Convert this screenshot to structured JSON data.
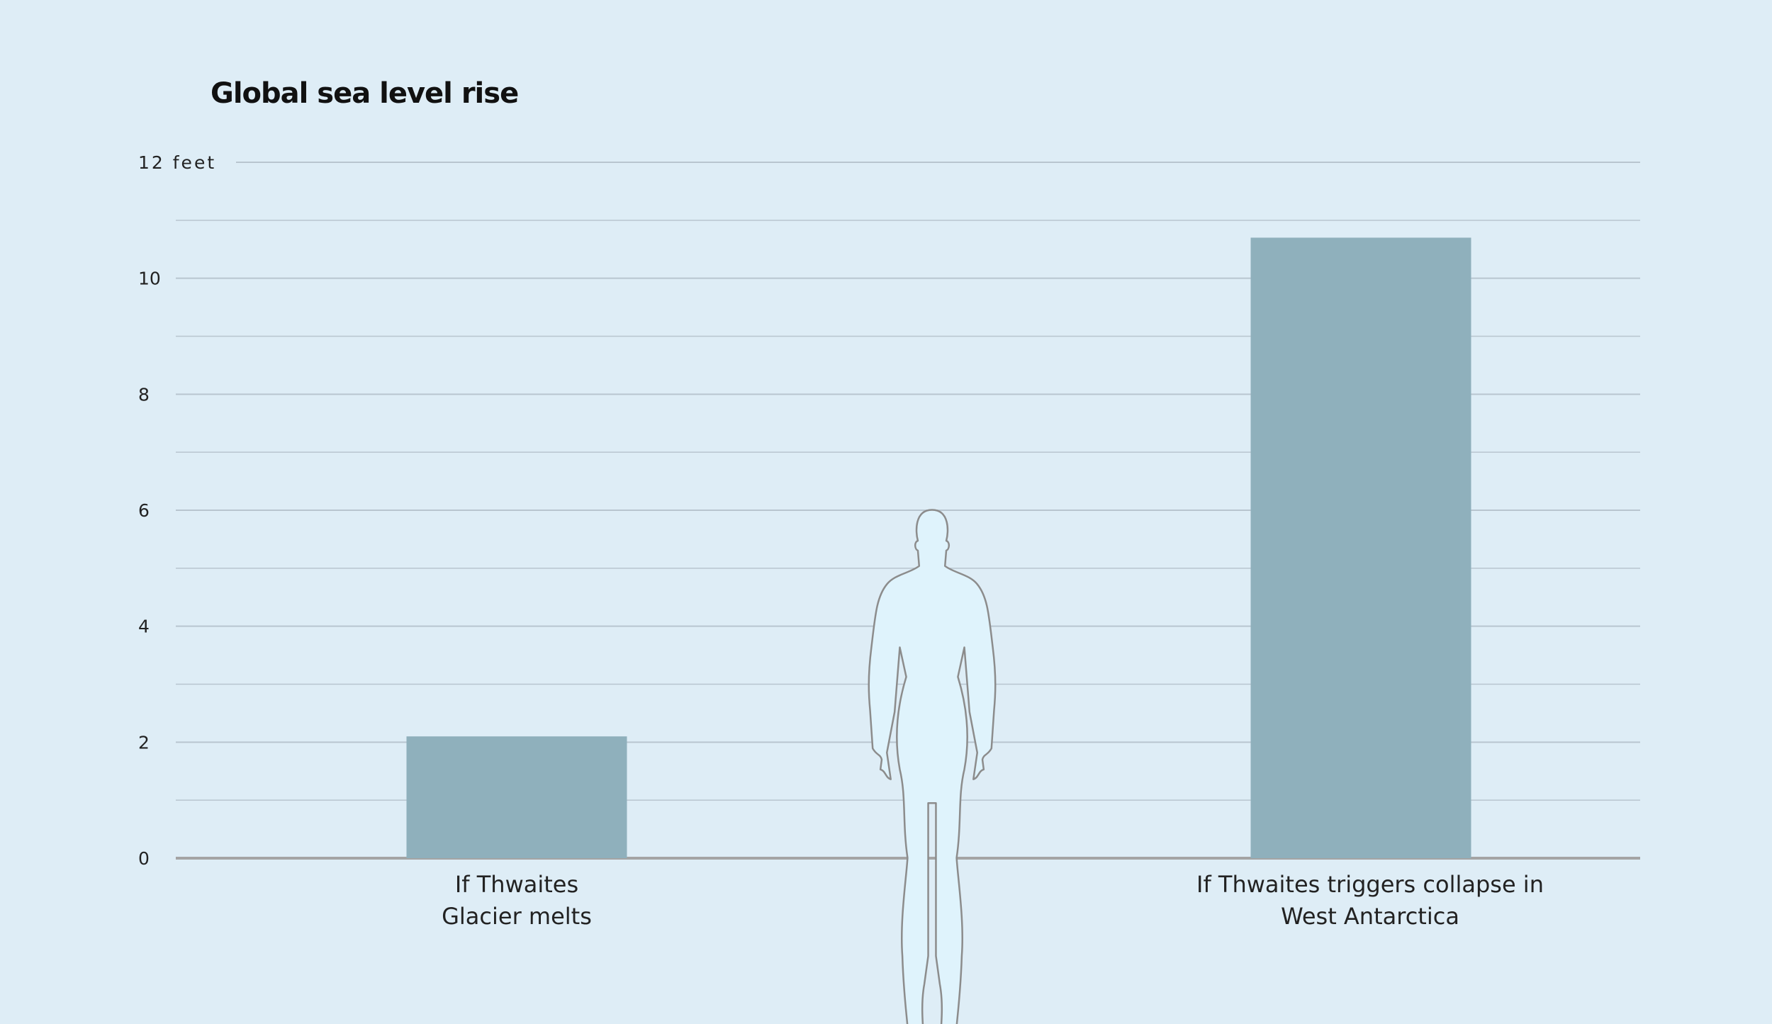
{
  "chart_data": {
    "type": "bar",
    "title": "Global sea level rise",
    "ylabel": "feet",
    "ylim": [
      0,
      12
    ],
    "yticks": [
      {
        "value": 0,
        "label": "0"
      },
      {
        "value": 2,
        "label": "2"
      },
      {
        "value": 4,
        "label": "4"
      },
      {
        "value": 6,
        "label": "6"
      },
      {
        "value": 8,
        "label": "8"
      },
      {
        "value": 10,
        "label": "10"
      },
      {
        "value": 12,
        "label": "12 feet"
      }
    ],
    "grid": true,
    "categories": [
      [
        "If Thwaites",
        "Glacier melts"
      ],
      [
        "",
        ""
      ],
      [
        "If Thwaites triggers collapse in",
        "West Antarctica"
      ]
    ],
    "values": [
      2.1,
      null,
      10.7
    ],
    "reference": {
      "icon": "human-figure-icon",
      "height_feet": 6
    },
    "colors": {
      "bar": "#8fb0bc",
      "grid": "#b8c5cf",
      "axis": "#a4a4a4",
      "figure_fill": "#dff3fc",
      "figure_stroke": "#8c8c8c",
      "background": "#deedf6"
    }
  }
}
